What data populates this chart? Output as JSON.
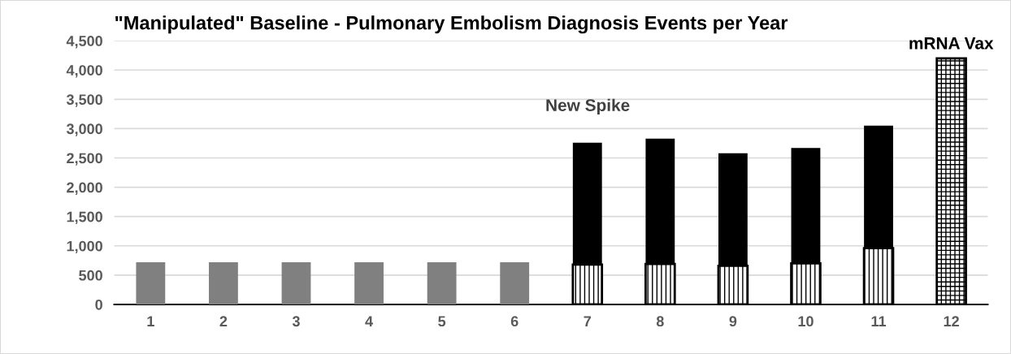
{
  "chart_data": {
    "type": "bar",
    "title": "\"Manipulated\" Baseline - Pulmonary Embolism Diagnosis Events per Year",
    "categories": [
      "1",
      "2",
      "3",
      "4",
      "5",
      "6",
      "7",
      "8",
      "9",
      "10",
      "11",
      "12"
    ],
    "stacked": true,
    "series": [
      {
        "color": "#808080",
        "values": [
          720,
          720,
          720,
          720,
          720,
          720,
          null,
          null,
          null,
          null,
          null,
          null
        ]
      },
      {
        "color": "#000000",
        "values": [
          null,
          null,
          null,
          null,
          null,
          null,
          680,
          690,
          660,
          700,
          960,
          null
        ]
      },
      {
        "color": "#000000",
        "values": [
          null,
          null,
          null,
          null,
          null,
          null,
          2080,
          2140,
          1920,
          1970,
          2090,
          null
        ]
      },
      {
        "color": "#000000",
        "values": [
          null,
          null,
          null,
          null,
          null,
          null,
          null,
          null,
          null,
          null,
          null,
          4200
        ]
      }
    ],
    "ylim": [
      0,
      4500
    ],
    "yticks": [
      {
        "value": 0,
        "label": "0"
      },
      {
        "value": 500,
        "label": "500"
      },
      {
        "value": 1000,
        "label": "1,000"
      },
      {
        "value": 1500,
        "label": "1,500"
      },
      {
        "value": 2000,
        "label": "2,000"
      },
      {
        "value": 2500,
        "label": "2,500"
      },
      {
        "value": 3000,
        "label": "3,000"
      },
      {
        "value": 3500,
        "label": "3,500"
      },
      {
        "value": 4000,
        "label": "4,000"
      },
      {
        "value": 4500,
        "label": "4,500"
      }
    ],
    "grid": "y",
    "annotations": [
      "New Spike",
      "mRNA Vax"
    ]
  }
}
